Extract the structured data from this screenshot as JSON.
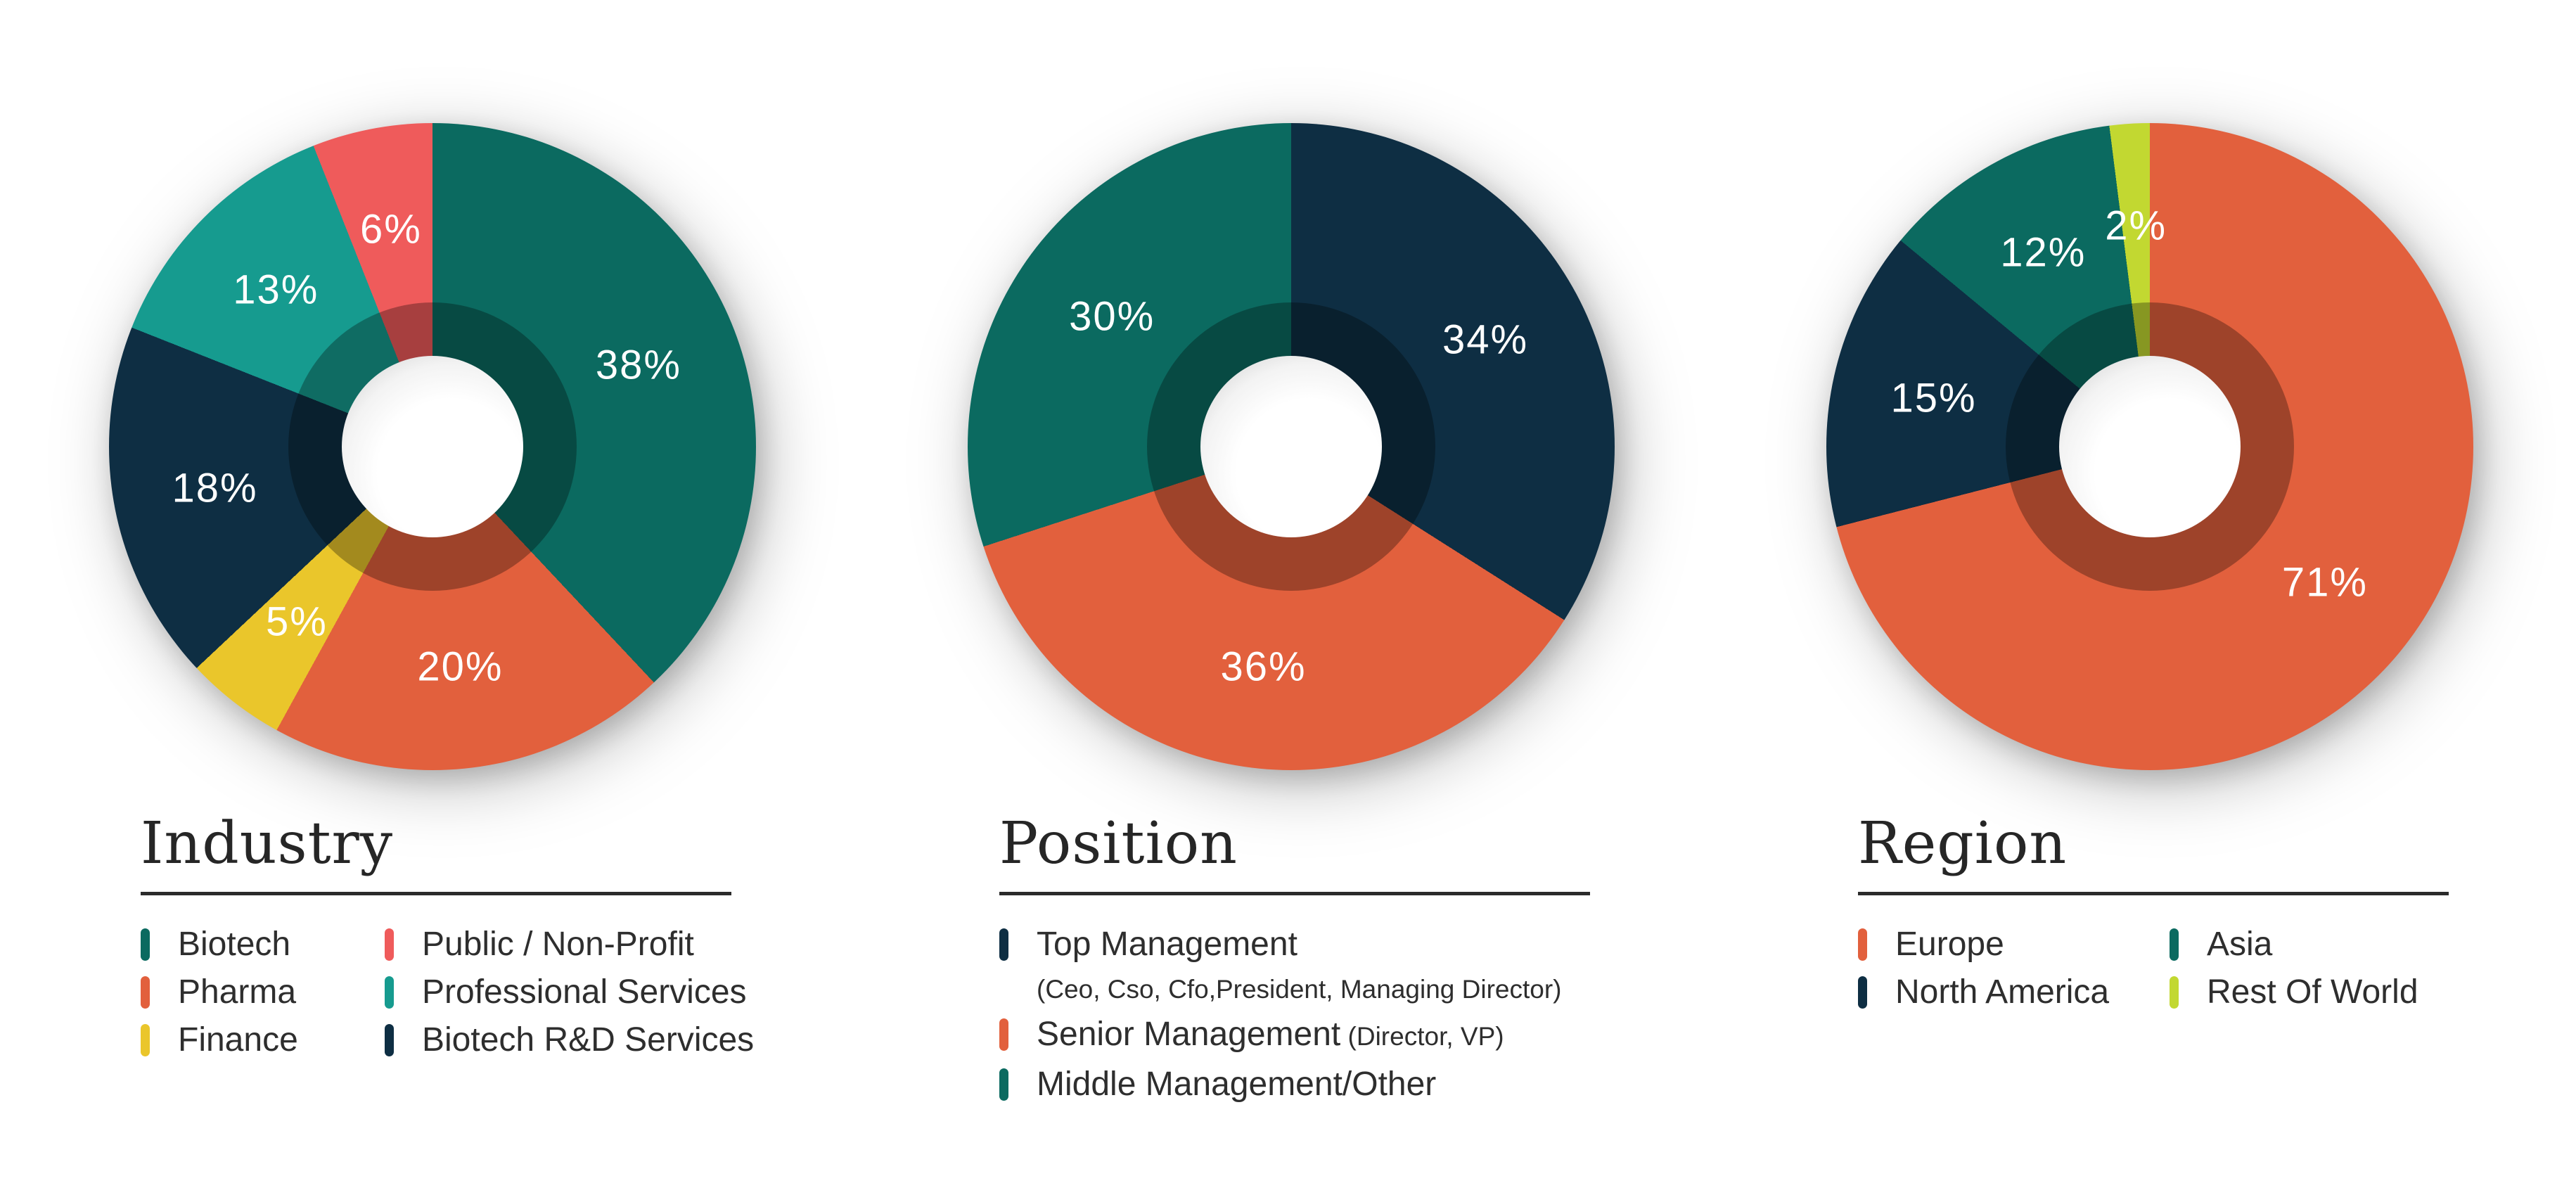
{
  "chart_data": [
    {
      "type": "donut",
      "title": "Industry",
      "categories": [
        "Biotech",
        "Pharma",
        "Finance",
        "Biotech R&D Services",
        "Professional Services",
        "Public / Non-Profit"
      ],
      "values": [
        38,
        20,
        5,
        18,
        13,
        6
      ],
      "slices": [
        {
          "label": "Biotech",
          "value": 38,
          "pct_label": "38%",
          "color": "#0B6A60"
        },
        {
          "label": "Pharma",
          "value": 20,
          "pct_label": "20%",
          "color": "#E2603D"
        },
        {
          "label": "Finance",
          "value": 5,
          "pct_label": "5%",
          "color": "#EAC62B"
        },
        {
          "label": "Biotech R&D Services",
          "value": 18,
          "pct_label": "18%",
          "color": "#0E2E43"
        },
        {
          "label": "Professional Services",
          "value": 13,
          "pct_label": "13%",
          "color": "#169B8F"
        },
        {
          "label": "Public / Non-Profit",
          "value": 6,
          "pct_label": "6%",
          "color": "#EF5B5B"
        }
      ],
      "legend_columns": [
        [
          {
            "label": "Biotech",
            "color": "#0B6A60"
          },
          {
            "label": "Pharma",
            "color": "#E2603D"
          },
          {
            "label": "Finance",
            "color": "#EAC62B"
          }
        ],
        [
          {
            "label": "Public / Non-Profit",
            "color": "#EF5B5B"
          },
          {
            "label": "Professional Services",
            "color": "#169B8F"
          },
          {
            "label": "Biotech R&D Services",
            "color": "#0E2E43"
          }
        ]
      ],
      "legend_position": "bottom",
      "start_angle_deg": 0,
      "direction": "clockwise"
    },
    {
      "type": "donut",
      "title": "Position",
      "categories": [
        "Top Management",
        "Senior Management",
        "Middle Management/Other"
      ],
      "values": [
        34,
        36,
        30
      ],
      "slices": [
        {
          "label": "Top Management",
          "value": 34,
          "pct_label": "34%",
          "color": "#0E2E43"
        },
        {
          "label": "Senior Management",
          "value": 36,
          "pct_label": "36%",
          "color": "#E2603D"
        },
        {
          "label": "Middle Management/Other",
          "value": 30,
          "pct_label": "30%",
          "color": "#0B6A60"
        }
      ],
      "legend_columns": [
        [
          {
            "label": "Top Management",
            "sub_below": "(Ceo, Cso, Cfo,President, Managing Director)",
            "color": "#0E2E43"
          },
          {
            "label": "Senior Management",
            "sub_inline": "(Director, VP)",
            "color": "#E2603D"
          },
          {
            "label": "Middle Management/Other",
            "color": "#0B6A60"
          }
        ]
      ],
      "legend_position": "bottom",
      "start_angle_deg": 0,
      "direction": "clockwise"
    },
    {
      "type": "donut",
      "title": "Region",
      "categories": [
        "Europe",
        "North America",
        "Asia",
        "Rest Of World"
      ],
      "values": [
        71,
        15,
        12,
        2
      ],
      "slices": [
        {
          "label": "Europe",
          "value": 71,
          "pct_label": "71%",
          "color": "#E2603D"
        },
        {
          "label": "North America",
          "value": 15,
          "pct_label": "15%",
          "color": "#0E2E43"
        },
        {
          "label": "Asia",
          "value": 12,
          "pct_label": "12%",
          "color": "#0B6A60"
        },
        {
          "label": "Rest Of World",
          "value": 2,
          "pct_label": "2%",
          "color": "#C2D831"
        }
      ],
      "legend_columns": [
        [
          {
            "label": "Europe",
            "color": "#E2603D"
          },
          {
            "label": "North America",
            "color": "#0E2E43"
          }
        ],
        [
          {
            "label": "Asia",
            "color": "#0B6A60"
          },
          {
            "label": "Rest Of World",
            "color": "#C2D831"
          }
        ]
      ],
      "legend_position": "bottom",
      "start_angle_deg": 0,
      "direction": "clockwise"
    }
  ],
  "style_tokens": {
    "background": "#FFFFFF",
    "title_color": "#262626",
    "legend_text_color": "#2E2E2E",
    "underline_color": "#2B2B2B",
    "slice_label_color": "#FFFFFF"
  }
}
